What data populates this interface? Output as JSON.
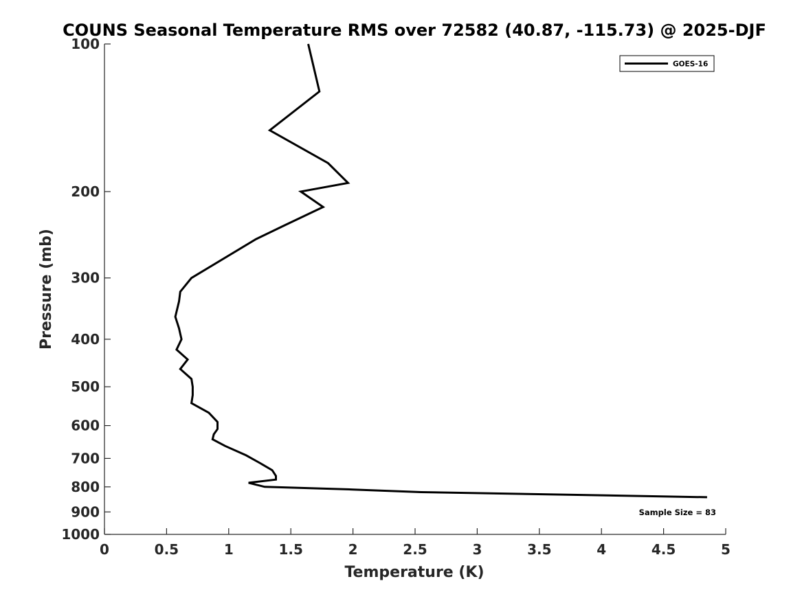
{
  "chart_data": {
    "type": "line",
    "title": "COUNS Seasonal Temperature RMS over 72582 (40.87, -115.73) @ 2025-DJF",
    "xlabel": "Temperature (K)",
    "ylabel": "Pressure (mb)",
    "xlim": [
      0,
      5
    ],
    "ylim": [
      100,
      1000
    ],
    "yscale": "log",
    "y_reversed": true,
    "x_ticks": [
      0,
      0.5,
      1,
      1.5,
      2,
      2.5,
      3,
      3.5,
      4,
      4.5,
      5
    ],
    "x_tick_labels": [
      "0",
      "0.5",
      "1",
      "1.5",
      "2",
      "2.5",
      "3",
      "3.5",
      "4",
      "4.5",
      "5"
    ],
    "y_ticks": [
      100,
      200,
      300,
      400,
      500,
      600,
      700,
      800,
      900,
      1000
    ],
    "y_tick_labels": [
      "100",
      "200",
      "300",
      "400",
      "500",
      "600",
      "700",
      "800",
      "900",
      "1000"
    ],
    "grid": false,
    "legend_position": "top-right",
    "annotation": "Sample Size = 83",
    "series": [
      {
        "name": "GOES-16",
        "color": "#000000",
        "points": [
          {
            "x": 1.64,
            "p": 100
          },
          {
            "x": 1.73,
            "p": 125
          },
          {
            "x": 1.33,
            "p": 150
          },
          {
            "x": 1.8,
            "p": 175
          },
          {
            "x": 1.96,
            "p": 192
          },
          {
            "x": 1.58,
            "p": 200
          },
          {
            "x": 1.76,
            "p": 215
          },
          {
            "x": 1.44,
            "p": 235
          },
          {
            "x": 1.22,
            "p": 250
          },
          {
            "x": 0.7,
            "p": 300
          },
          {
            "x": 0.61,
            "p": 320
          },
          {
            "x": 0.6,
            "p": 335
          },
          {
            "x": 0.57,
            "p": 360
          },
          {
            "x": 0.6,
            "p": 380
          },
          {
            "x": 0.62,
            "p": 400
          },
          {
            "x": 0.58,
            "p": 420
          },
          {
            "x": 0.67,
            "p": 440
          },
          {
            "x": 0.61,
            "p": 460
          },
          {
            "x": 0.7,
            "p": 482
          },
          {
            "x": 0.71,
            "p": 500
          },
          {
            "x": 0.71,
            "p": 520
          },
          {
            "x": 0.7,
            "p": 540
          },
          {
            "x": 0.84,
            "p": 565
          },
          {
            "x": 0.91,
            "p": 590
          },
          {
            "x": 0.91,
            "p": 610
          },
          {
            "x": 0.88,
            "p": 625
          },
          {
            "x": 0.87,
            "p": 640
          },
          {
            "x": 0.97,
            "p": 660
          },
          {
            "x": 1.14,
            "p": 690
          },
          {
            "x": 1.25,
            "p": 715
          },
          {
            "x": 1.35,
            "p": 740
          },
          {
            "x": 1.38,
            "p": 760
          },
          {
            "x": 1.38,
            "p": 773
          },
          {
            "x": 1.16,
            "p": 785
          },
          {
            "x": 1.29,
            "p": 800
          },
          {
            "x": 2.0,
            "p": 810
          },
          {
            "x": 2.55,
            "p": 820
          },
          {
            "x": 4.85,
            "p": 840
          }
        ]
      }
    ]
  }
}
